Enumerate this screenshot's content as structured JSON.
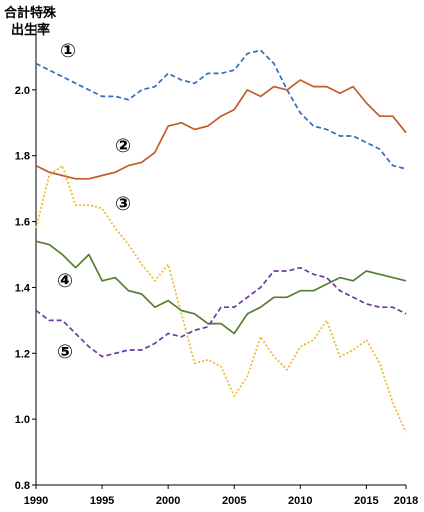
{
  "chart_data": {
    "type": "line",
    "ylabel": [
      "合計特殊",
      "出生率"
    ],
    "xlabel": "",
    "ylim": [
      0.8,
      2.2
    ],
    "xlim": [
      1990,
      2018
    ],
    "y_ticks": [
      "0.8",
      "1.0",
      "1.2",
      "1.4",
      "1.6",
      "1.8",
      "2.0"
    ],
    "y_tick_values": [
      0.8,
      1.0,
      1.2,
      1.4,
      1.6,
      1.8,
      2.0
    ],
    "x_ticks": [
      "1990",
      "1995",
      "2000",
      "2005",
      "2010",
      "2015",
      "2018"
    ],
    "x_tick_values": [
      1990,
      1995,
      2000,
      2005,
      2010,
      2015,
      2018
    ],
    "grid": false,
    "x": [
      1990,
      1991,
      1992,
      1993,
      1994,
      1995,
      1996,
      1997,
      1998,
      1999,
      2000,
      2001,
      2002,
      2003,
      2004,
      2005,
      2006,
      2007,
      2008,
      2009,
      2010,
      2011,
      2012,
      2013,
      2014,
      2015,
      2016,
      2017,
      2018
    ],
    "series": [
      {
        "name": "①",
        "color": "#2e6fbd",
        "dash": "5,3",
        "values": [
          2.08,
          2.06,
          2.04,
          2.02,
          2.0,
          1.98,
          1.98,
          1.97,
          2.0,
          2.01,
          2.05,
          2.03,
          2.02,
          2.05,
          2.05,
          2.06,
          2.11,
          2.12,
          2.08,
          2.0,
          1.93,
          1.89,
          1.88,
          1.86,
          1.86,
          1.84,
          1.82,
          1.77,
          1.76
        ]
      },
      {
        "name": "②",
        "color": "#c45a2a",
        "dash": "",
        "values": [
          1.77,
          1.75,
          1.74,
          1.73,
          1.73,
          1.74,
          1.75,
          1.77,
          1.78,
          1.81,
          1.89,
          1.9,
          1.88,
          1.89,
          1.92,
          1.94,
          2.0,
          1.98,
          2.01,
          2.0,
          2.03,
          2.01,
          2.01,
          1.99,
          2.01,
          1.96,
          1.92,
          1.92,
          1.87
        ]
      },
      {
        "name": "③",
        "color": "#f2b531",
        "dash": "2,2",
        "values": [
          1.58,
          1.74,
          1.77,
          1.65,
          1.65,
          1.64,
          1.58,
          1.53,
          1.47,
          1.42,
          1.47,
          1.32,
          1.17,
          1.18,
          1.16,
          1.07,
          1.13,
          1.25,
          1.19,
          1.15,
          1.22,
          1.24,
          1.3,
          1.19,
          1.21,
          1.24,
          1.17,
          1.05,
          0.96
        ]
      },
      {
        "name": "④",
        "color": "#567d31",
        "dash": "",
        "values": [
          1.54,
          1.53,
          1.5,
          1.46,
          1.5,
          1.42,
          1.43,
          1.39,
          1.38,
          1.34,
          1.36,
          1.33,
          1.32,
          1.29,
          1.29,
          1.26,
          1.32,
          1.34,
          1.37,
          1.37,
          1.39,
          1.39,
          1.41,
          1.43,
          1.42,
          1.45,
          1.44,
          1.43,
          1.42
        ]
      },
      {
        "name": "⑤",
        "color": "#6b3a9e",
        "dash": "5,3",
        "values": [
          1.33,
          1.3,
          1.3,
          1.26,
          1.22,
          1.19,
          1.2,
          1.21,
          1.21,
          1.23,
          1.26,
          1.25,
          1.27,
          1.28,
          1.34,
          1.34,
          1.37,
          1.4,
          1.45,
          1.45,
          1.46,
          1.44,
          1.43,
          1.39,
          1.37,
          1.35,
          1.34,
          1.34,
          1.32
        ]
      }
    ],
    "annotations": [
      "①",
      "②",
      "③",
      "④",
      "⑤"
    ]
  }
}
